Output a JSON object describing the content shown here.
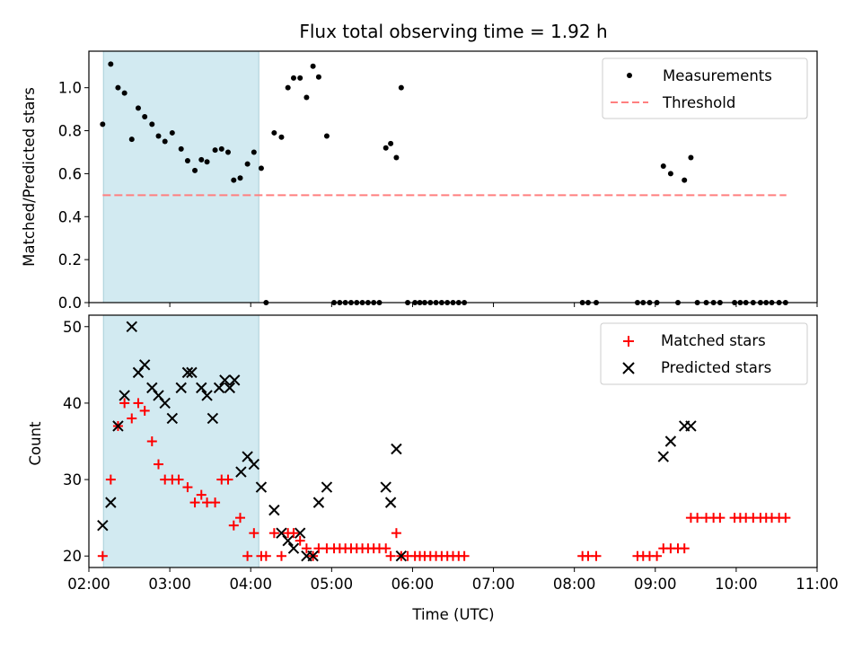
{
  "chart_data": [
    {
      "type": "scatter",
      "title": "Flux total observing time = 1.92 h",
      "xlabel": "",
      "ylabel": "Matched/Predicted stars",
      "xlim": [
        2.0,
        11.0
      ],
      "ylim": [
        0,
        1.17
      ],
      "yticks": [
        0.0,
        0.2,
        0.4,
        0.6,
        0.8,
        1.0
      ],
      "ytick_labels": [
        "0.0",
        "0.2",
        "0.4",
        "0.6",
        "0.8",
        "1.0"
      ],
      "shaded_interval": [
        2.18,
        4.1
      ],
      "shade_color": "#add8e6",
      "legend_position": "top-right",
      "series": [
        {
          "name": "Measurements",
          "marker": "dot",
          "color": "#000000",
          "x": [
            2.17,
            2.27,
            2.36,
            2.44,
            2.53,
            2.61,
            2.69,
            2.78,
            2.86,
            2.94,
            3.03,
            3.14,
            3.22,
            3.31,
            3.39,
            3.46,
            3.56,
            3.64,
            3.72,
            3.79,
            3.87,
            3.96,
            4.04,
            4.13,
            4.19,
            4.29,
            4.38,
            4.46,
            4.53,
            4.61,
            4.69,
            4.77,
            4.84,
            4.94,
            5.03,
            5.1,
            5.17,
            5.24,
            5.31,
            5.38,
            5.45,
            5.52,
            5.59,
            5.67,
            5.73,
            5.8,
            5.86,
            5.94,
            6.03,
            6.09,
            6.15,
            6.22,
            6.29,
            6.36,
            6.43,
            6.5,
            6.57,
            6.64,
            8.1,
            8.17,
            8.27,
            8.78,
            8.85,
            8.93,
            9.02,
            9.1,
            9.19,
            9.28,
            9.36,
            9.44,
            9.52,
            9.63,
            9.72,
            9.8,
            9.98,
            10.05,
            10.12,
            10.21,
            10.3,
            10.37,
            10.44,
            10.53,
            10.61
          ],
          "y": [
            0.83,
            1.11,
            1.0,
            0.975,
            0.76,
            0.905,
            0.865,
            0.83,
            0.775,
            0.75,
            0.79,
            0.715,
            0.66,
            0.615,
            0.665,
            0.655,
            0.71,
            0.715,
            0.7,
            0.57,
            0.58,
            0.645,
            0.7,
            0.625,
            0.0,
            0.79,
            0.77,
            1.0,
            1.045,
            1.045,
            0.955,
            1.1,
            1.05,
            0.775,
            0.0,
            0.0,
            0.0,
            0.0,
            0.0,
            0.0,
            0.0,
            0.0,
            0.0,
            0.72,
            0.74,
            0.675,
            1.0,
            0.0,
            0.0,
            0.0,
            0.0,
            0.0,
            0.0,
            0.0,
            0.0,
            0.0,
            0.0,
            0.0,
            0.0,
            0.0,
            0.0,
            0.0,
            0.0,
            0.0,
            0.0,
            0.635,
            0.6,
            0.0,
            0.57,
            0.675,
            0.0,
            0.0,
            0.0,
            0.0,
            0.0,
            0.0,
            0.0,
            0.0,
            0.0,
            0.0,
            0.0,
            0.0,
            0.0
          ]
        },
        {
          "name": "Threshold",
          "marker": "dashed-line",
          "color": "#ff7f7f",
          "x": [
            2.17,
            10.62
          ],
          "y": [
            0.5,
            0.5
          ]
        }
      ]
    },
    {
      "type": "scatter",
      "title": "",
      "xlabel": "Time (UTC)",
      "ylabel": "Count",
      "xlim": [
        2.0,
        11.0
      ],
      "ylim": [
        18.5,
        51.5
      ],
      "yticks": [
        20,
        30,
        40,
        50
      ],
      "ytick_labels": [
        "20",
        "30",
        "40",
        "50"
      ],
      "xticks": [
        2,
        3,
        4,
        5,
        6,
        7,
        8,
        9,
        10,
        11
      ],
      "xtick_labels": [
        "02:00",
        "03:00",
        "04:00",
        "05:00",
        "06:00",
        "07:00",
        "08:00",
        "09:00",
        "10:00",
        "11:00"
      ],
      "shaded_interval": [
        2.18,
        4.1
      ],
      "shade_color": "#add8e6",
      "legend_position": "top-right",
      "series": [
        {
          "name": "Matched stars",
          "marker": "plus",
          "color": "#ff0000",
          "x": [
            2.17,
            2.27,
            2.36,
            2.44,
            2.53,
            2.61,
            2.69,
            2.78,
            2.86,
            2.94,
            3.03,
            3.11,
            3.22,
            3.31,
            3.39,
            3.46,
            3.56,
            3.64,
            3.72,
            3.79,
            3.87,
            3.96,
            4.04,
            4.13,
            4.19,
            4.29,
            4.38,
            4.46,
            4.53,
            4.61,
            4.69,
            4.77,
            4.84,
            4.94,
            5.03,
            5.1,
            5.17,
            5.24,
            5.31,
            5.38,
            5.45,
            5.52,
            5.59,
            5.67,
            5.73,
            5.8,
            5.86,
            5.94,
            6.03,
            6.09,
            6.15,
            6.22,
            6.29,
            6.36,
            6.43,
            6.5,
            6.57,
            6.64,
            8.1,
            8.17,
            8.27,
            8.78,
            8.85,
            8.93,
            9.02,
            9.1,
            9.19,
            9.28,
            9.36,
            9.44,
            9.52,
            9.63,
            9.72,
            9.8,
            9.98,
            10.05,
            10.12,
            10.21,
            10.3,
            10.37,
            10.44,
            10.53,
            10.61
          ],
          "y": [
            20,
            30,
            37,
            40,
            38,
            40,
            39,
            35,
            32,
            30,
            30,
            30,
            29,
            27,
            28,
            27,
            27,
            30,
            30,
            24,
            25,
            20,
            23,
            20,
            20,
            23,
            20,
            23,
            23,
            22,
            21,
            20,
            21,
            21,
            21,
            21,
            21,
            21,
            21,
            21,
            21,
            21,
            21,
            21,
            20,
            23,
            20,
            20,
            20,
            20,
            20,
            20,
            20,
            20,
            20,
            20,
            20,
            20,
            20,
            20,
            20,
            20,
            20,
            20,
            20,
            21,
            21,
            21,
            21,
            25,
            25,
            25,
            25,
            25,
            25,
            25,
            25,
            25,
            25,
            25,
            25,
            25,
            25
          ]
        },
        {
          "name": "Predicted stars",
          "marker": "x",
          "color": "#000000",
          "x": [
            2.17,
            2.27,
            2.36,
            2.44,
            2.53,
            2.61,
            2.69,
            2.78,
            2.86,
            2.94,
            3.03,
            3.14,
            3.22,
            3.27,
            3.39,
            3.46,
            3.53,
            3.61,
            3.68,
            3.74,
            3.8,
            3.88,
            3.96,
            4.04,
            4.13,
            4.29,
            4.38,
            4.46,
            4.53,
            4.61,
            4.69,
            4.77,
            4.84,
            4.94,
            5.67,
            5.73,
            5.8,
            5.86,
            9.1,
            9.19,
            9.36,
            9.44
          ],
          "y": [
            24,
            27,
            37,
            41,
            50,
            44,
            45,
            42,
            41,
            40,
            38,
            42,
            44,
            44,
            42,
            41,
            38,
            42,
            43,
            42,
            43,
            31,
            33,
            32,
            29,
            26,
            23,
            22,
            21,
            23,
            20,
            20,
            27,
            29,
            29,
            27,
            34,
            20,
            33,
            35,
            37,
            37
          ]
        }
      ]
    }
  ]
}
